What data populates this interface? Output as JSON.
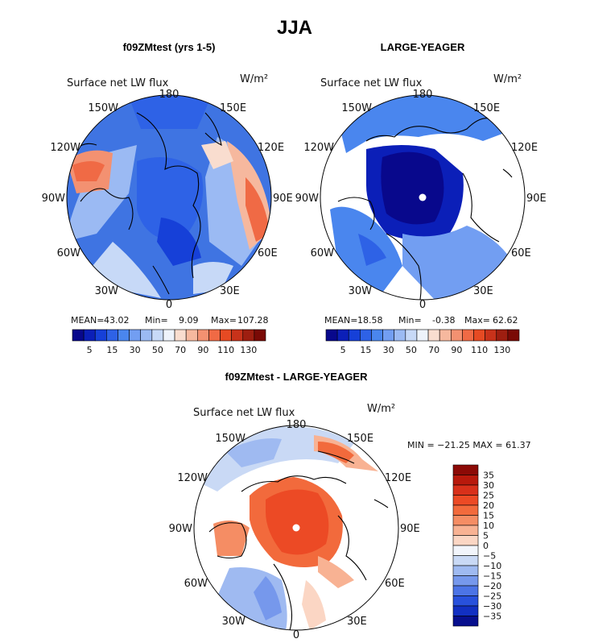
{
  "title": "JJA",
  "colors": {
    "ocean_blue": "#3a6fe0",
    "land": "#ffffff",
    "center_dot": "#ffffff"
  },
  "chart_data": [
    {
      "type": "heatmap",
      "projection": "polar-stereographic",
      "title": "f09ZMtest (yrs 1-5)",
      "subtitle": "Surface net LW flux",
      "units": "W/m²",
      "longitude_labels": [
        "180",
        "150E",
        "120E",
        "90E",
        "60E",
        "30E",
        "0",
        "30W",
        "60W",
        "90W",
        "120W",
        "150W"
      ],
      "stats": {
        "mean_label": "MEAN=",
        "mean": "43.02",
        "min_label": "Min=",
        "min": "9.09",
        "max_label": "Max=",
        "max": "107.28"
      },
      "colorbar": {
        "tick_labels": [
          "5",
          "15",
          "30",
          "50",
          "70",
          "90",
          "110",
          "130"
        ],
        "colors": [
          "#08088c",
          "#0b1fb8",
          "#1640d8",
          "#2e62e6",
          "#4a86ee",
          "#729ef2",
          "#9bbaf3",
          "#c7d9f7",
          "#eef3fb",
          "#f9ddcf",
          "#f6b89e",
          "#f39171",
          "#f06a45",
          "#e64a23",
          "#c8321a",
          "#9e1e10",
          "#7a0a06"
        ]
      }
    },
    {
      "type": "heatmap",
      "projection": "polar-stereographic",
      "title": "LARGE-YEAGER",
      "subtitle": "Surface net LW flux",
      "units": "W/m²",
      "longitude_labels": [
        "180",
        "150E",
        "120E",
        "90E",
        "60E",
        "30E",
        "0",
        "30W",
        "60W",
        "90W",
        "120W",
        "150W"
      ],
      "stats": {
        "mean_label": "MEAN=",
        "mean": "18.58",
        "min_label": "Min=",
        "min": "-0.38",
        "max_label": "Max=",
        "max": "62.62"
      },
      "colorbar": {
        "tick_labels": [
          "5",
          "15",
          "30",
          "50",
          "70",
          "90",
          "110",
          "130"
        ],
        "colors": [
          "#08088c",
          "#0b1fb8",
          "#1640d8",
          "#2e62e6",
          "#4a86ee",
          "#729ef2",
          "#9bbaf3",
          "#c7d9f7",
          "#eef3fb",
          "#f9ddcf",
          "#f6b89e",
          "#f39171",
          "#f06a45",
          "#e64a23",
          "#c8321a",
          "#9e1e10",
          "#7a0a06"
        ]
      }
    },
    {
      "type": "heatmap",
      "projection": "polar-stereographic",
      "title": "f09ZMtest - LARGE-YEAGER",
      "subtitle": "Surface net LW flux",
      "units": "W/m²",
      "longitude_labels": [
        "180",
        "150E",
        "120E",
        "90E",
        "60E",
        "30E",
        "0",
        "30W",
        "60W",
        "90W",
        "120W",
        "150W"
      ],
      "stats_text": "MIN = −21.25 MAX =  61.37",
      "colorbar": {
        "tick_labels": [
          "35",
          "30",
          "25",
          "20",
          "15",
          "10",
          "5",
          "0",
          "−5",
          "−10",
          "−15",
          "−20",
          "−25",
          "−30",
          "−35"
        ],
        "colors": [
          "#8c0a06",
          "#b8190c",
          "#d8301a",
          "#ec4a25",
          "#f26a3c",
          "#f58d64",
          "#f8b293",
          "#fbd6c4",
          "#f2f5fb",
          "#c9d9f5",
          "#9fbaf1",
          "#7698ec",
          "#4c74e6",
          "#2851dc",
          "#1230c2",
          "#070f8e"
        ]
      }
    }
  ]
}
